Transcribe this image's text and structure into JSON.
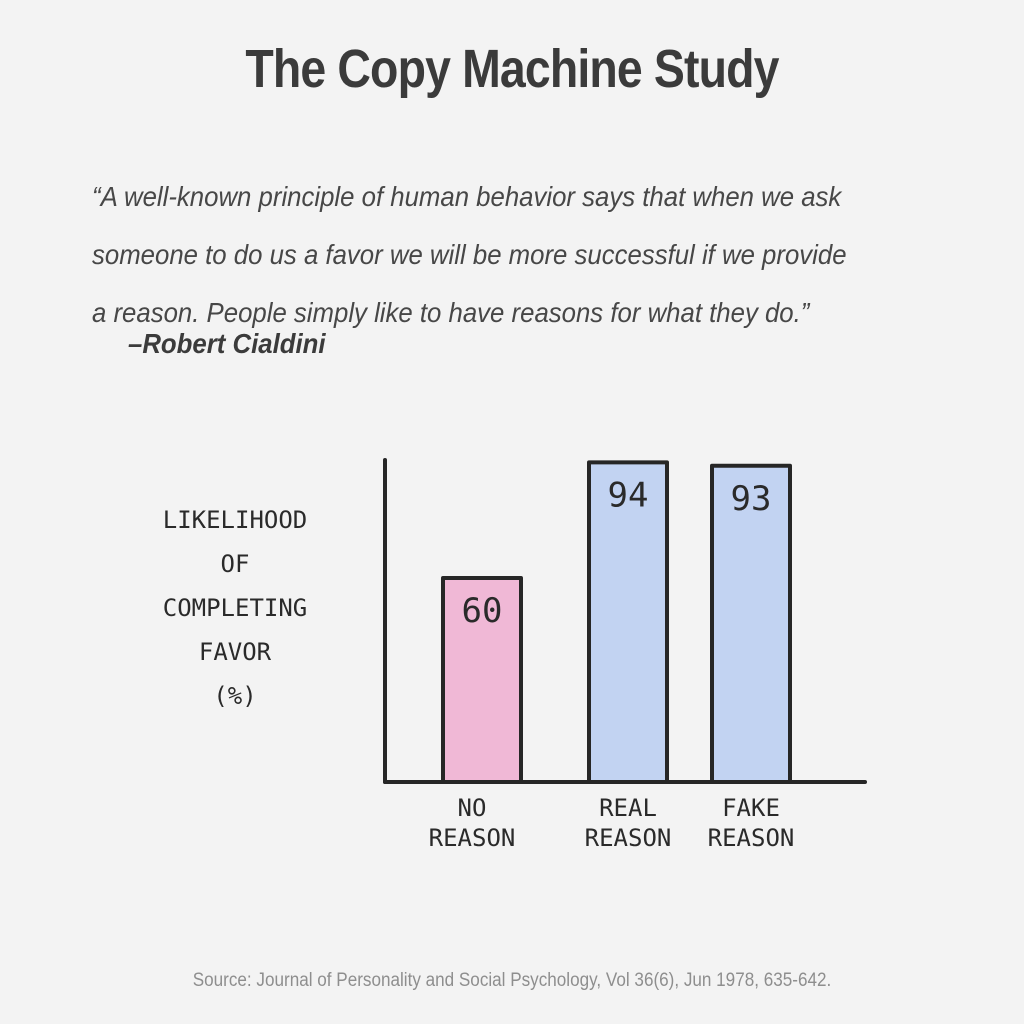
{
  "title": "The Copy Machine Study",
  "quote": {
    "lines": [
      "“A well-known principle of human behavior says that when we ask",
      "someone to do us a favor we will be more successful if we provide",
      "a reason. People simply like to have reasons for what they do.”"
    ],
    "attribution": "–Robert Cialdini"
  },
  "chart_data": {
    "type": "bar",
    "categories": [
      "NO REASON",
      "REAL REASON",
      "FAKE REASON"
    ],
    "category_label_lines": [
      [
        "NO",
        "REASON"
      ],
      [
        "REAL",
        "REASON"
      ],
      [
        "FAKE",
        "REASON"
      ]
    ],
    "values": [
      60,
      94,
      93
    ],
    "data_labels": [
      "60",
      "94",
      "93"
    ],
    "bar_colors": [
      "#f0b8d6",
      "#c2d3f2",
      "#c2d3f2"
    ],
    "ylabel_lines": [
      "LIKELIHOOD",
      "OF",
      "COMPLETING",
      "FAVOR",
      "(%)"
    ],
    "ylim": [
      0,
      100
    ],
    "grid": false,
    "legend": "none"
  },
  "source": "Source: Journal of Personality and Social Psychology, Vol 36(6), Jun 1978, 635-642."
}
